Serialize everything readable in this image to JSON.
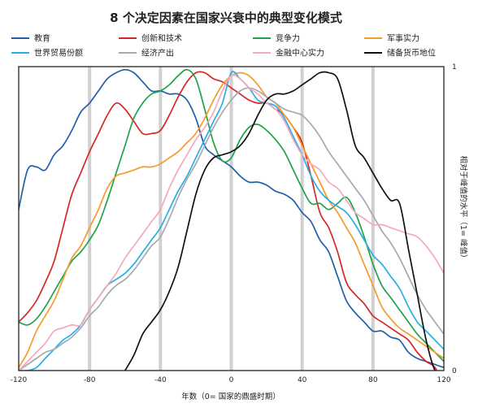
{
  "chart_data": {
    "type": "line",
    "title": "8 个决定因素在国家兴衰中的典型变化模式",
    "xlabel": "年数（0= 国家的鼎盛时期）",
    "ylabel": "相对于峰值的水平（1= 峰值）",
    "xlim": [
      -120,
      120
    ],
    "ylim": [
      0,
      1
    ],
    "x_ticks": [
      -120,
      -80,
      -40,
      0,
      40,
      80,
      120
    ],
    "x_tick_labels": [
      "-120",
      "-80",
      "-40",
      "0",
      "40",
      "80",
      "120"
    ],
    "y_ticks": [
      0,
      1
    ],
    "y_tick_labels": [
      "0",
      "1"
    ],
    "gridlines_x": [
      -80,
      -40,
      0,
      40,
      80
    ],
    "legend_position": "top",
    "series": [
      {
        "name": "教育",
        "color": "#1f5fa8",
        "x": [
          -120,
          -115,
          -110,
          -105,
          -100,
          -95,
          -90,
          -85,
          -80,
          -75,
          -70,
          -65,
          -60,
          -55,
          -50,
          -45,
          -40,
          -35,
          -30,
          -25,
          -20,
          -15,
          -10,
          -5,
          0,
          5,
          10,
          15,
          20,
          25,
          30,
          35,
          40,
          45,
          50,
          55,
          60,
          65,
          70,
          75,
          80,
          85,
          90,
          95,
          100,
          105,
          110,
          115,
          120
        ],
        "y": [
          0.53,
          0.66,
          0.67,
          0.66,
          0.71,
          0.74,
          0.79,
          0.85,
          0.88,
          0.92,
          0.96,
          0.98,
          0.99,
          0.98,
          0.95,
          0.92,
          0.92,
          0.91,
          0.91,
          0.89,
          0.83,
          0.74,
          0.71,
          0.69,
          0.67,
          0.64,
          0.62,
          0.62,
          0.61,
          0.59,
          0.58,
          0.56,
          0.52,
          0.49,
          0.43,
          0.39,
          0.31,
          0.23,
          0.19,
          0.16,
          0.13,
          0.13,
          0.11,
          0.1,
          0.06,
          0.04,
          0.03,
          0.02,
          0.01
        ]
      },
      {
        "name": "创新和技术",
        "color": "#d62728",
        "x": [
          -120,
          -115,
          -110,
          -105,
          -100,
          -95,
          -90,
          -85,
          -80,
          -75,
          -70,
          -65,
          -60,
          -55,
          -50,
          -45,
          -40,
          -35,
          -30,
          -25,
          -20,
          -15,
          -10,
          -5,
          0,
          5,
          10,
          15,
          20,
          25,
          30,
          35,
          40,
          45,
          50,
          55,
          60,
          65,
          70,
          75,
          80,
          85,
          90,
          95,
          100,
          105,
          110,
          115,
          120
        ],
        "y": [
          0.16,
          0.19,
          0.23,
          0.29,
          0.36,
          0.47,
          0.58,
          0.65,
          0.72,
          0.78,
          0.84,
          0.88,
          0.86,
          0.82,
          0.78,
          0.78,
          0.79,
          0.84,
          0.9,
          0.95,
          0.98,
          0.98,
          0.96,
          0.95,
          0.93,
          0.91,
          0.89,
          0.88,
          0.88,
          0.86,
          0.84,
          0.8,
          0.75,
          0.64,
          0.52,
          0.47,
          0.39,
          0.29,
          0.25,
          0.22,
          0.18,
          0.16,
          0.14,
          0.12,
          0.1,
          0.06,
          0.03,
          0.01,
          -0.05
        ]
      },
      {
        "name": "竞争力",
        "color": "#1fa34a",
        "x": [
          -120,
          -115,
          -110,
          -105,
          -100,
          -95,
          -90,
          -85,
          -80,
          -75,
          -70,
          -65,
          -60,
          -55,
          -50,
          -45,
          -40,
          -35,
          -30,
          -25,
          -20,
          -15,
          -10,
          -5,
          0,
          5,
          10,
          15,
          20,
          25,
          30,
          35,
          40,
          45,
          50,
          55,
          60,
          65,
          70,
          75,
          80,
          85,
          90,
          95,
          100,
          105,
          110,
          115,
          120
        ],
        "y": [
          0.16,
          0.15,
          0.17,
          0.21,
          0.26,
          0.31,
          0.36,
          0.39,
          0.43,
          0.48,
          0.56,
          0.65,
          0.74,
          0.83,
          0.88,
          0.91,
          0.92,
          0.94,
          0.97,
          0.99,
          0.96,
          0.86,
          0.75,
          0.69,
          0.7,
          0.76,
          0.8,
          0.81,
          0.79,
          0.76,
          0.72,
          0.66,
          0.6,
          0.55,
          0.55,
          0.53,
          0.55,
          0.57,
          0.52,
          0.44,
          0.35,
          0.28,
          0.24,
          0.2,
          0.16,
          0.12,
          0.09,
          0.06,
          0.03
        ]
      },
      {
        "name": "军事实力",
        "color": "#f59b2c",
        "x": [
          -120,
          -115,
          -110,
          -105,
          -100,
          -95,
          -90,
          -85,
          -80,
          -75,
          -70,
          -65,
          -60,
          -55,
          -50,
          -45,
          -40,
          -35,
          -30,
          -25,
          -20,
          -15,
          -10,
          -5,
          0,
          5,
          10,
          15,
          20,
          25,
          30,
          35,
          40,
          45,
          50,
          55,
          60,
          65,
          70,
          75,
          80,
          85,
          90,
          95,
          100,
          105,
          110,
          115,
          120
        ],
        "y": [
          0.01,
          0.06,
          0.13,
          0.18,
          0.23,
          0.3,
          0.37,
          0.41,
          0.47,
          0.53,
          0.6,
          0.64,
          0.65,
          0.66,
          0.67,
          0.67,
          0.68,
          0.7,
          0.72,
          0.75,
          0.78,
          0.83,
          0.89,
          0.94,
          0.97,
          0.98,
          0.97,
          0.94,
          0.9,
          0.88,
          0.84,
          0.8,
          0.74,
          0.68,
          0.62,
          0.56,
          0.52,
          0.47,
          0.42,
          0.35,
          0.28,
          0.21,
          0.17,
          0.14,
          0.12,
          0.1,
          0.08,
          0.06,
          0.04
        ]
      },
      {
        "name": "世界贸易份额",
        "color": "#29aee3",
        "x": [
          -120,
          -115,
          -110,
          -105,
          -100,
          -95,
          -90,
          -85,
          -80,
          -75,
          -70,
          -65,
          -60,
          -55,
          -50,
          -45,
          -40,
          -35,
          -30,
          -25,
          -20,
          -15,
          -10,
          -5,
          0,
          5,
          10,
          15,
          20,
          25,
          30,
          35,
          40,
          45,
          50,
          55,
          60,
          65,
          70,
          75,
          80,
          85,
          90,
          95,
          100,
          105,
          110,
          115,
          120
        ],
        "y": [
          0.0,
          0.0,
          0.01,
          0.04,
          0.07,
          0.1,
          0.12,
          0.15,
          0.2,
          0.24,
          0.28,
          0.3,
          0.32,
          0.35,
          0.39,
          0.43,
          0.47,
          0.53,
          0.59,
          0.64,
          0.7,
          0.76,
          0.82,
          0.88,
          0.98,
          0.96,
          0.93,
          0.89,
          0.88,
          0.87,
          0.83,
          0.77,
          0.71,
          0.64,
          0.59,
          0.56,
          0.54,
          0.52,
          0.48,
          0.43,
          0.38,
          0.35,
          0.31,
          0.27,
          0.21,
          0.16,
          0.13,
          0.1,
          0.07
        ]
      },
      {
        "name": "经济产出",
        "color": "#a7a9ac",
        "x": [
          -120,
          -115,
          -110,
          -105,
          -100,
          -95,
          -90,
          -85,
          -80,
          -75,
          -70,
          -65,
          -60,
          -55,
          -50,
          -45,
          -40,
          -35,
          -30,
          -25,
          -20,
          -15,
          -10,
          -5,
          0,
          5,
          10,
          15,
          20,
          25,
          30,
          35,
          40,
          45,
          50,
          55,
          60,
          65,
          70,
          75,
          80,
          85,
          90,
          95,
          100,
          105,
          110,
          115,
          120
        ],
        "y": [
          0.0,
          0.02,
          0.04,
          0.06,
          0.07,
          0.09,
          0.11,
          0.14,
          0.18,
          0.21,
          0.25,
          0.28,
          0.3,
          0.33,
          0.37,
          0.41,
          0.44,
          0.5,
          0.57,
          0.63,
          0.68,
          0.74,
          0.8,
          0.85,
          0.89,
          0.92,
          0.93,
          0.92,
          0.9,
          0.88,
          0.86,
          0.85,
          0.84,
          0.81,
          0.77,
          0.72,
          0.68,
          0.64,
          0.6,
          0.56,
          0.51,
          0.46,
          0.42,
          0.37,
          0.31,
          0.25,
          0.2,
          0.16,
          0.12
        ]
      },
      {
        "name": "金融中心实力",
        "color": "#f4a9bd",
        "x": [
          -120,
          -115,
          -110,
          -105,
          -100,
          -95,
          -90,
          -85,
          -80,
          -75,
          -70,
          -65,
          -60,
          -55,
          -50,
          -45,
          -40,
          -35,
          -30,
          -25,
          -20,
          -15,
          -10,
          -5,
          0,
          5,
          10,
          15,
          20,
          25,
          30,
          35,
          40,
          45,
          50,
          55,
          60,
          65,
          70,
          75,
          80,
          85,
          90,
          95,
          100,
          105,
          110,
          115,
          120
        ],
        "y": [
          0.0,
          0.03,
          0.06,
          0.09,
          0.13,
          0.14,
          0.15,
          0.15,
          0.2,
          0.24,
          0.28,
          0.32,
          0.37,
          0.41,
          0.45,
          0.49,
          0.53,
          0.6,
          0.66,
          0.71,
          0.76,
          0.8,
          0.85,
          0.92,
          0.97,
          0.96,
          0.93,
          0.91,
          0.88,
          0.86,
          0.82,
          0.76,
          0.71,
          0.68,
          0.66,
          0.62,
          0.6,
          0.56,
          0.52,
          0.5,
          0.48,
          0.48,
          0.47,
          0.46,
          0.45,
          0.44,
          0.41,
          0.37,
          0.32
        ]
      },
      {
        "name": "储备货币地位",
        "color": "#111111",
        "x": [
          -60,
          -55,
          -50,
          -45,
          -40,
          -35,
          -30,
          -25,
          -20,
          -15,
          -10,
          -5,
          0,
          5,
          10,
          15,
          20,
          25,
          30,
          35,
          40,
          45,
          50,
          55,
          60,
          65,
          70,
          75,
          80,
          85,
          90,
          95,
          100,
          105,
          110,
          115,
          120
        ],
        "y": [
          0.0,
          0.05,
          0.12,
          0.16,
          0.2,
          0.26,
          0.34,
          0.46,
          0.58,
          0.66,
          0.7,
          0.71,
          0.72,
          0.74,
          0.78,
          0.84,
          0.89,
          0.91,
          0.91,
          0.92,
          0.94,
          0.96,
          0.98,
          0.98,
          0.96,
          0.86,
          0.74,
          0.7,
          0.65,
          0.6,
          0.56,
          0.55,
          0.4,
          0.25,
          0.1,
          0.0,
          -0.02
        ]
      }
    ]
  }
}
